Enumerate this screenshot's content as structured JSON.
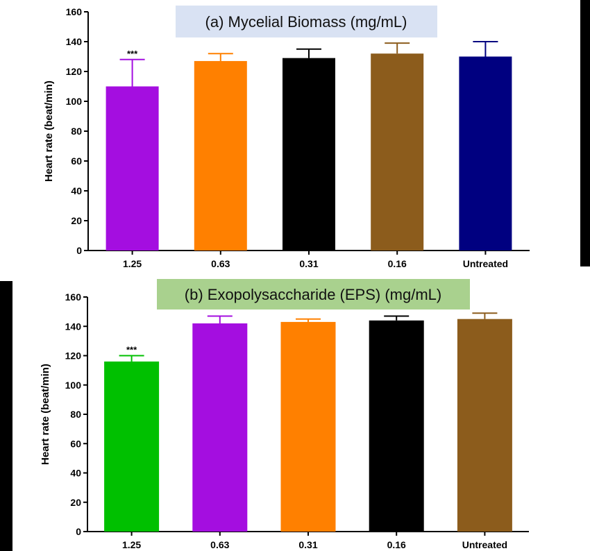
{
  "chart_data": [
    {
      "type": "bar",
      "title": "(a) Mycelial Biomass (mg/mL)",
      "title_bg": "#d9e2f3",
      "ylabel": "Heart rate (beat/min)",
      "xlabel": "",
      "ylim": [
        0,
        160
      ],
      "yticks": [
        "0",
        "20",
        "40",
        "60",
        "80",
        "100",
        "120",
        "140",
        "160"
      ],
      "categories": [
        "1.25",
        "0.63",
        "0.31",
        "0.16",
        "Untreated"
      ],
      "values": [
        110,
        127,
        129,
        132,
        130
      ],
      "errors": [
        18,
        5,
        6,
        7,
        10
      ],
      "colors": [
        "#a40ee0",
        "#ff8000",
        "#000000",
        "#8c5c1c",
        "#000080"
      ],
      "significance": [
        "***",
        "",
        "",
        "",
        ""
      ],
      "grid": false
    },
    {
      "type": "bar",
      "title": "(b) Exopolysaccharide (EPS) (mg/mL)",
      "title_bg": "#a9d18e",
      "ylabel": "Heart rate (beat/min)",
      "xlabel": "",
      "ylim": [
        0,
        160
      ],
      "yticks": [
        "0",
        "20",
        "40",
        "60",
        "80",
        "100",
        "120",
        "140",
        "160"
      ],
      "categories": [
        "1.25",
        "0.63",
        "0.31",
        "0.16",
        "Untreated"
      ],
      "values": [
        116,
        142,
        143,
        144,
        145
      ],
      "errors": [
        4,
        5,
        2,
        3,
        4
      ],
      "colors": [
        "#00c000",
        "#a40ee0",
        "#ff8000",
        "#000000",
        "#8c5c1c"
      ],
      "significance": [
        "***",
        "",
        "",
        "",
        ""
      ],
      "grid": false
    }
  ]
}
